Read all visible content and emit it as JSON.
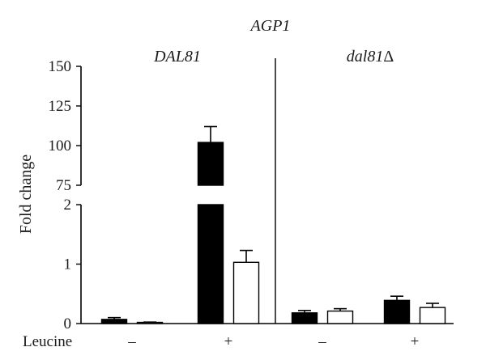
{
  "chart_data": {
    "type": "bar",
    "title": "AGP1",
    "ylabel": "Fold change",
    "axis_break": {
      "lower": [
        0,
        2
      ],
      "upper": [
        75,
        150
      ]
    },
    "yticks_lower": [
      "0",
      "1",
      "2"
    ],
    "yticks_upper": [
      "75",
      "100",
      "125",
      "150"
    ],
    "groups": [
      {
        "label": "DAL81",
        "label_suffix": ""
      },
      {
        "label": "dal81",
        "label_suffix": "Δ"
      }
    ],
    "condition_label": "Leucine",
    "conditions": [
      "–",
      "+",
      "–",
      "+"
    ],
    "series_colors": [
      "#000000",
      "#ffffff"
    ],
    "bars": [
      {
        "group": 0,
        "condition": 0,
        "series": 0,
        "value": 0.07,
        "error": 0.03
      },
      {
        "group": 0,
        "condition": 0,
        "series": 1,
        "value": 0.02,
        "error": 0.005
      },
      {
        "group": 0,
        "condition": 1,
        "series": 0,
        "value": 102,
        "error": 10
      },
      {
        "group": 0,
        "condition": 1,
        "series": 1,
        "value": 1.03,
        "error": 0.2
      },
      {
        "group": 1,
        "condition": 2,
        "series": 0,
        "value": 0.18,
        "error": 0.04
      },
      {
        "group": 1,
        "condition": 2,
        "series": 1,
        "value": 0.21,
        "error": 0.04
      },
      {
        "group": 1,
        "condition": 3,
        "series": 0,
        "value": 0.39,
        "error": 0.07
      },
      {
        "group": 1,
        "condition": 3,
        "series": 1,
        "value": 0.27,
        "error": 0.07
      }
    ]
  }
}
